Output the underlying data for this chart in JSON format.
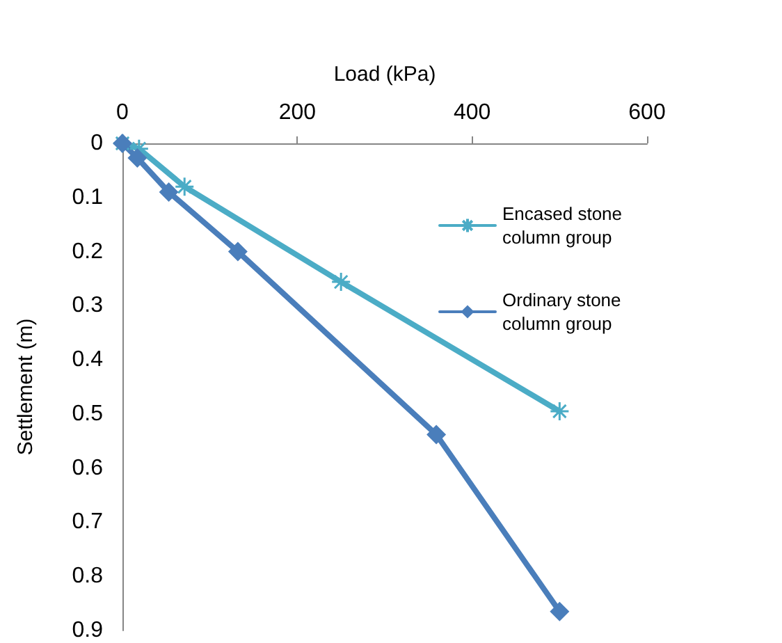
{
  "chart_data": {
    "type": "line",
    "xlabel": "Load (kPa)",
    "ylabel": "Settlement (m)",
    "xlim": [
      0,
      600
    ],
    "xticks": [
      0,
      200,
      400,
      600
    ],
    "ylim": [
      0.9,
      0
    ],
    "yticks": [
      0,
      0.1,
      0.2,
      0.3,
      0.4,
      0.5,
      0.6,
      0.7,
      0.8,
      0.9
    ],
    "legend": "right",
    "grid": false,
    "line_style": "solid",
    "series": [
      {
        "name": "Encased stone column group",
        "color": "#4bacc6",
        "marker": "cross",
        "x": [
          0,
          19,
          71,
          250,
          500
        ],
        "values": [
          0,
          0.01,
          0.08,
          0.256,
          0.495
        ]
      },
      {
        "name": "Ordinary stone column group",
        "color": "#4a7ebb",
        "marker": "diamond",
        "x": [
          0,
          17,
          53,
          132,
          359,
          500
        ],
        "values": [
          0,
          0.027,
          0.09,
          0.2,
          0.538,
          0.865
        ]
      }
    ]
  }
}
